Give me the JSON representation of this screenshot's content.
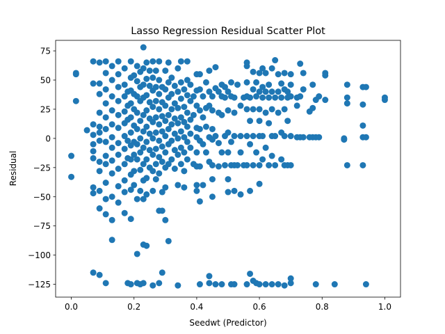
{
  "chart_data": {
    "type": "scatter",
    "title": "Lasso Regression Residual Scatter Plot",
    "xlabel": "Seedwt (Predictor)",
    "ylabel": "Residual",
    "xlim": [
      -0.05,
      1.05
    ],
    "ylim": [
      -136,
      84
    ],
    "x_ticks": [
      0.0,
      0.2,
      0.4,
      0.6,
      0.8,
      1.0
    ],
    "x_tick_labels": [
      "0.0",
      "0.2",
      "0.4",
      "0.6",
      "0.8",
      "1.0"
    ],
    "y_ticks": [
      75,
      50,
      25,
      0,
      -25,
      -50,
      -75,
      -100,
      -125
    ],
    "y_tick_labels": [
      "75",
      "50",
      "25",
      "0",
      "−25",
      "−50",
      "−75",
      "−100",
      "−125"
    ],
    "grid": false,
    "legend": "none",
    "point_color": "#1f77b4",
    "points": [
      [
        0.0,
        -15
      ],
      [
        0.0,
        -33
      ],
      [
        0.015,
        56
      ],
      [
        0.015,
        55
      ],
      [
        0.015,
        32
      ],
      [
        0.05,
        7
      ],
      [
        0.07,
        66
      ],
      [
        0.07,
        47
      ],
      [
        0.07,
        12
      ],
      [
        0.07,
        3
      ],
      [
        0.07,
        -5
      ],
      [
        0.07,
        -11
      ],
      [
        0.07,
        -17
      ],
      [
        0.07,
        -42
      ],
      [
        0.07,
        -47
      ],
      [
        0.07,
        -115
      ],
      [
        0.09,
        65
      ],
      [
        0.09,
        47
      ],
      [
        0.09,
        38
      ],
      [
        0.09,
        22
      ],
      [
        0.09,
        10
      ],
      [
        0.09,
        5
      ],
      [
        0.09,
        -2
      ],
      [
        0.09,
        -20
      ],
      [
        0.09,
        -28
      ],
      [
        0.09,
        -45
      ],
      [
        0.09,
        -60
      ],
      [
        0.09,
        -117
      ],
      [
        0.11,
        66
      ],
      [
        0.11,
        56
      ],
      [
        0.11,
        42
      ],
      [
        0.11,
        30
      ],
      [
        0.11,
        18
      ],
      [
        0.11,
        8
      ],
      [
        0.11,
        -3
      ],
      [
        0.11,
        -15
      ],
      [
        0.11,
        -22
      ],
      [
        0.11,
        -38
      ],
      [
        0.11,
        -52
      ],
      [
        0.11,
        -65
      ],
      [
        0.11,
        -124
      ],
      [
        0.13,
        62
      ],
      [
        0.13,
        50
      ],
      [
        0.13,
        36
      ],
      [
        0.13,
        24
      ],
      [
        0.13,
        12
      ],
      [
        0.13,
        1
      ],
      [
        0.13,
        -8
      ],
      [
        0.13,
        -19
      ],
      [
        0.13,
        -30
      ],
      [
        0.13,
        -50
      ],
      [
        0.13,
        -70
      ],
      [
        0.13,
        -87
      ],
      [
        0.15,
        66
      ],
      [
        0.15,
        55
      ],
      [
        0.15,
        44
      ],
      [
        0.15,
        32
      ],
      [
        0.15,
        20
      ],
      [
        0.15,
        9
      ],
      [
        0.15,
        -4
      ],
      [
        0.15,
        -14
      ],
      [
        0.15,
        -26
      ],
      [
        0.15,
        -41
      ],
      [
        0.15,
        -55
      ],
      [
        0.17,
        60
      ],
      [
        0.17,
        46
      ],
      [
        0.17,
        36
      ],
      [
        0.17,
        23
      ],
      [
        0.17,
        13
      ],
      [
        0.17,
        2
      ],
      [
        0.17,
        -9
      ],
      [
        0.17,
        -22
      ],
      [
        0.17,
        -36
      ],
      [
        0.17,
        -46
      ],
      [
        0.17,
        -64
      ],
      [
        0.18,
        40
      ],
      [
        0.18,
        28
      ],
      [
        0.18,
        16
      ],
      [
        0.18,
        -2
      ],
      [
        0.18,
        -17
      ],
      [
        0.18,
        -124
      ],
      [
        0.19,
        66
      ],
      [
        0.19,
        52
      ],
      [
        0.19,
        41
      ],
      [
        0.19,
        30
      ],
      [
        0.19,
        18
      ],
      [
        0.19,
        5
      ],
      [
        0.19,
        -6
      ],
      [
        0.19,
        -18
      ],
      [
        0.19,
        -31
      ],
      [
        0.19,
        -44
      ],
      [
        0.19,
        -69
      ],
      [
        0.19,
        -125
      ],
      [
        0.2,
        54
      ],
      [
        0.2,
        38
      ],
      [
        0.2,
        25
      ],
      [
        0.2,
        11
      ],
      [
        0.2,
        -3
      ],
      [
        0.2,
        -14
      ],
      [
        0.2,
        -28
      ],
      [
        0.2,
        -40
      ],
      [
        0.21,
        62
      ],
      [
        0.21,
        49
      ],
      [
        0.21,
        36
      ],
      [
        0.21,
        22
      ],
      [
        0.21,
        8
      ],
      [
        0.21,
        -5
      ],
      [
        0.21,
        -18
      ],
      [
        0.21,
        -52
      ],
      [
        0.21,
        -99
      ],
      [
        0.21,
        -124
      ],
      [
        0.22,
        57
      ],
      [
        0.22,
        44
      ],
      [
        0.22,
        32
      ],
      [
        0.22,
        15
      ],
      [
        0.22,
        0
      ],
      [
        0.22,
        -12
      ],
      [
        0.22,
        -27
      ],
      [
        0.22,
        -45
      ],
      [
        0.22,
        -125
      ],
      [
        0.23,
        78
      ],
      [
        0.23,
        60
      ],
      [
        0.23,
        46
      ],
      [
        0.23,
        35
      ],
      [
        0.23,
        20
      ],
      [
        0.23,
        6
      ],
      [
        0.23,
        -8
      ],
      [
        0.23,
        -22
      ],
      [
        0.23,
        -36
      ],
      [
        0.23,
        -52
      ],
      [
        0.23,
        -91
      ],
      [
        0.23,
        -124
      ],
      [
        0.24,
        65
      ],
      [
        0.24,
        51
      ],
      [
        0.24,
        37
      ],
      [
        0.24,
        24
      ],
      [
        0.24,
        10
      ],
      [
        0.24,
        -3
      ],
      [
        0.24,
        -18
      ],
      [
        0.24,
        -34
      ],
      [
        0.24,
        -48
      ],
      [
        0.24,
        -92
      ],
      [
        0.25,
        58
      ],
      [
        0.25,
        45
      ],
      [
        0.25,
        31
      ],
      [
        0.25,
        17
      ],
      [
        0.25,
        4
      ],
      [
        0.25,
        -10
      ],
      [
        0.25,
        -25
      ],
      [
        0.26,
        66
      ],
      [
        0.26,
        52
      ],
      [
        0.26,
        41
      ],
      [
        0.26,
        27
      ],
      [
        0.26,
        14
      ],
      [
        0.26,
        0
      ],
      [
        0.26,
        -14
      ],
      [
        0.26,
        -28
      ],
      [
        0.26,
        -45
      ],
      [
        0.26,
        -126
      ],
      [
        0.27,
        58
      ],
      [
        0.27,
        44
      ],
      [
        0.27,
        32
      ],
      [
        0.27,
        18
      ],
      [
        0.27,
        5
      ],
      [
        0.27,
        -9
      ],
      [
        0.27,
        -22
      ],
      [
        0.27,
        -35
      ],
      [
        0.28,
        66
      ],
      [
        0.28,
        50
      ],
      [
        0.28,
        38
      ],
      [
        0.28,
        25
      ],
      [
        0.28,
        12
      ],
      [
        0.28,
        -2
      ],
      [
        0.28,
        -16
      ],
      [
        0.28,
        -30
      ],
      [
        0.28,
        -62
      ],
      [
        0.28,
        -124
      ],
      [
        0.29,
        44
      ],
      [
        0.29,
        31
      ],
      [
        0.29,
        19
      ],
      [
        0.29,
        6
      ],
      [
        0.29,
        -7
      ],
      [
        0.29,
        -20
      ],
      [
        0.29,
        -46
      ],
      [
        0.29,
        -62
      ],
      [
        0.29,
        -115
      ],
      [
        0.3,
        58
      ],
      [
        0.3,
        42
      ],
      [
        0.3,
        28
      ],
      [
        0.3,
        15
      ],
      [
        0.3,
        2
      ],
      [
        0.3,
        -12
      ],
      [
        0.3,
        -25
      ],
      [
        0.3,
        -42
      ],
      [
        0.3,
        -70
      ],
      [
        0.31,
        65
      ],
      [
        0.31,
        48
      ],
      [
        0.31,
        35
      ],
      [
        0.31,
        20
      ],
      [
        0.31,
        8
      ],
      [
        0.31,
        -5
      ],
      [
        0.31,
        -22
      ],
      [
        0.31,
        -88
      ],
      [
        0.32,
        52
      ],
      [
        0.32,
        38
      ],
      [
        0.32,
        25
      ],
      [
        0.32,
        12
      ],
      [
        0.32,
        -2
      ],
      [
        0.32,
        -18
      ],
      [
        0.33,
        45
      ],
      [
        0.33,
        30
      ],
      [
        0.33,
        17
      ],
      [
        0.33,
        4
      ],
      [
        0.33,
        -10
      ],
      [
        0.33,
        -26
      ],
      [
        0.34,
        60
      ],
      [
        0.34,
        40
      ],
      [
        0.34,
        26
      ],
      [
        0.34,
        13
      ],
      [
        0.34,
        0
      ],
      [
        0.34,
        -14
      ],
      [
        0.34,
        -40
      ],
      [
        0.34,
        -126
      ],
      [
        0.35,
        66
      ],
      [
        0.35,
        48
      ],
      [
        0.35,
        34
      ],
      [
        0.35,
        18
      ],
      [
        0.35,
        6
      ],
      [
        0.35,
        -8
      ],
      [
        0.35,
        -22
      ],
      [
        0.36,
        42
      ],
      [
        0.36,
        27
      ],
      [
        0.36,
        14
      ],
      [
        0.36,
        1
      ],
      [
        0.36,
        -12
      ],
      [
        0.36,
        -28
      ],
      [
        0.36,
        -42
      ],
      [
        0.37,
        66
      ],
      [
        0.37,
        50
      ],
      [
        0.37,
        37
      ],
      [
        0.37,
        22
      ],
      [
        0.37,
        10
      ],
      [
        0.37,
        -3
      ],
      [
        0.37,
        -18
      ],
      [
        0.38,
        46
      ],
      [
        0.38,
        32
      ],
      [
        0.38,
        16
      ],
      [
        0.38,
        4
      ],
      [
        0.38,
        -8
      ],
      [
        0.39,
        36
      ],
      [
        0.39,
        20
      ],
      [
        0.39,
        -22
      ],
      [
        0.4,
        55
      ],
      [
        0.4,
        41
      ],
      [
        0.4,
        28
      ],
      [
        0.4,
        9
      ],
      [
        0.4,
        1
      ],
      [
        0.4,
        -12
      ],
      [
        0.4,
        -24
      ],
      [
        0.4,
        -40
      ],
      [
        0.4,
        -45
      ],
      [
        0.41,
        55
      ],
      [
        0.41,
        42
      ],
      [
        0.41,
        24
      ],
      [
        0.41,
        8
      ],
      [
        0.41,
        -2
      ],
      [
        0.41,
        -24
      ],
      [
        0.41,
        -54
      ],
      [
        0.41,
        -125
      ],
      [
        0.42,
        36
      ],
      [
        0.42,
        18
      ],
      [
        0.42,
        -5
      ],
      [
        0.42,
        -40
      ],
      [
        0.43,
        48
      ],
      [
        0.43,
        26
      ],
      [
        0.43,
        10
      ],
      [
        0.43,
        -12
      ],
      [
        0.44,
        58
      ],
      [
        0.44,
        40
      ],
      [
        0.44,
        28
      ],
      [
        0.44,
        1
      ],
      [
        0.44,
        -20
      ],
      [
        0.44,
        -118
      ],
      [
        0.44,
        -124
      ],
      [
        0.45,
        36
      ],
      [
        0.45,
        24
      ],
      [
        0.45,
        8
      ],
      [
        0.45,
        -1
      ],
      [
        0.45,
        -23
      ],
      [
        0.45,
        -35
      ],
      [
        0.45,
        -50
      ],
      [
        0.46,
        61
      ],
      [
        0.46,
        43
      ],
      [
        0.46,
        2
      ],
      [
        0.46,
        -125
      ],
      [
        0.47,
        40
      ],
      [
        0.47,
        22
      ],
      [
        0.47,
        -4
      ],
      [
        0.47,
        -24
      ],
      [
        0.48,
        46
      ],
      [
        0.48,
        36
      ],
      [
        0.48,
        20
      ],
      [
        0.48,
        -12
      ],
      [
        0.48,
        -125
      ],
      [
        0.49,
        44
      ],
      [
        0.49,
        35
      ],
      [
        0.49,
        2
      ],
      [
        0.49,
        -23
      ],
      [
        0.5,
        40
      ],
      [
        0.5,
        24
      ],
      [
        0.5,
        5
      ],
      [
        0.5,
        -12
      ],
      [
        0.5,
        -35
      ],
      [
        0.5,
        -46
      ],
      [
        0.51,
        48
      ],
      [
        0.51,
        36
      ],
      [
        0.51,
        -3
      ],
      [
        0.51,
        -23
      ],
      [
        0.51,
        -125
      ],
      [
        0.52,
        35
      ],
      [
        0.52,
        22
      ],
      [
        0.52,
        2
      ],
      [
        0.52,
        -23
      ],
      [
        0.52,
        -45
      ],
      [
        0.52,
        -125
      ],
      [
        0.53,
        46
      ],
      [
        0.53,
        -23
      ],
      [
        0.54,
        28
      ],
      [
        0.54,
        2
      ],
      [
        0.54,
        -12
      ],
      [
        0.54,
        -48
      ],
      [
        0.55,
        35
      ],
      [
        0.55,
        -23
      ],
      [
        0.56,
        65
      ],
      [
        0.56,
        62
      ],
      [
        0.56,
        48
      ],
      [
        0.56,
        36
      ],
      [
        0.56,
        25
      ],
      [
        0.56,
        2
      ],
      [
        0.56,
        -23
      ],
      [
        0.56,
        -125
      ],
      [
        0.57,
        35
      ],
      [
        0.57,
        15
      ],
      [
        0.57,
        -5
      ],
      [
        0.57,
        -45
      ],
      [
        0.57,
        -116
      ],
      [
        0.58,
        57
      ],
      [
        0.58,
        42
      ],
      [
        0.58,
        25
      ],
      [
        0.58,
        2
      ],
      [
        0.58,
        -23
      ],
      [
        0.58,
        -122
      ],
      [
        0.59,
        48
      ],
      [
        0.59,
        36
      ],
      [
        0.59,
        -12
      ],
      [
        0.59,
        -124
      ],
      [
        0.6,
        56
      ],
      [
        0.6,
        40
      ],
      [
        0.6,
        25
      ],
      [
        0.6,
        15
      ],
      [
        0.6,
        2
      ],
      [
        0.6,
        -23
      ],
      [
        0.6,
        -39
      ],
      [
        0.6,
        -125
      ],
      [
        0.61,
        60
      ],
      [
        0.61,
        44
      ],
      [
        0.61,
        35
      ],
      [
        0.61,
        2
      ],
      [
        0.61,
        -18
      ],
      [
        0.62,
        56
      ],
      [
        0.62,
        40
      ],
      [
        0.62,
        22
      ],
      [
        0.62,
        -8
      ],
      [
        0.62,
        -125
      ],
      [
        0.63,
        46
      ],
      [
        0.63,
        35
      ],
      [
        0.63,
        13
      ],
      [
        0.63,
        -23
      ],
      [
        0.64,
        60
      ],
      [
        0.64,
        40
      ],
      [
        0.64,
        25
      ],
      [
        0.64,
        2
      ],
      [
        0.64,
        -15
      ],
      [
        0.64,
        -125
      ],
      [
        0.65,
        67
      ],
      [
        0.65,
        35
      ],
      [
        0.65,
        2
      ],
      [
        0.65,
        -23
      ],
      [
        0.66,
        55
      ],
      [
        0.66,
        40
      ],
      [
        0.66,
        22
      ],
      [
        0.66,
        -125
      ],
      [
        0.67,
        47
      ],
      [
        0.67,
        35
      ],
      [
        0.67,
        5
      ],
      [
        0.67,
        -18
      ],
      [
        0.68,
        56
      ],
      [
        0.68,
        42
      ],
      [
        0.68,
        25
      ],
      [
        0.68,
        2
      ],
      [
        0.68,
        -23
      ],
      [
        0.68,
        -126
      ],
      [
        0.69,
        40
      ],
      [
        0.69,
        35
      ],
      [
        0.69,
        15
      ],
      [
        0.69,
        -23
      ],
      [
        0.7,
        55
      ],
      [
        0.7,
        46
      ],
      [
        0.7,
        36
      ],
      [
        0.7,
        2
      ],
      [
        0.7,
        -23
      ],
      [
        0.7,
        -120
      ],
      [
        0.7,
        -124
      ],
      [
        0.72,
        35
      ],
      [
        0.72,
        28
      ],
      [
        0.72,
        1
      ],
      [
        0.73,
        64
      ],
      [
        0.73,
        36
      ],
      [
        0.73,
        1
      ],
      [
        0.74,
        56
      ],
      [
        0.74,
        42
      ],
      [
        0.74,
        1
      ],
      [
        0.76,
        23
      ],
      [
        0.76,
        1
      ],
      [
        0.77,
        46
      ],
      [
        0.77,
        26
      ],
      [
        0.77,
        1
      ],
      [
        0.78,
        33
      ],
      [
        0.78,
        1
      ],
      [
        0.78,
        -125
      ],
      [
        0.79,
        36
      ],
      [
        0.79,
        1
      ],
      [
        0.81,
        56
      ],
      [
        0.81,
        54
      ],
      [
        0.81,
        33
      ],
      [
        0.84,
        -125
      ],
      [
        0.87,
        0
      ],
      [
        0.87,
        -1
      ],
      [
        0.88,
        46
      ],
      [
        0.88,
        35
      ],
      [
        0.88,
        30
      ],
      [
        0.88,
        -23
      ],
      [
        0.93,
        44
      ],
      [
        0.93,
        29
      ],
      [
        0.93,
        11
      ],
      [
        0.93,
        1
      ],
      [
        0.93,
        -23
      ],
      [
        0.94,
        44
      ],
      [
        0.94,
        1
      ],
      [
        0.94,
        -125
      ],
      [
        1.0,
        35
      ],
      [
        1.0,
        33
      ]
    ]
  }
}
